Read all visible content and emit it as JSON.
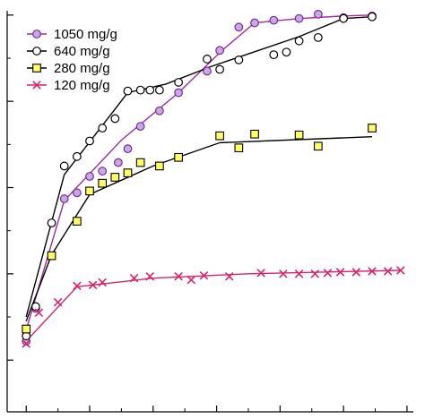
{
  "chart_data": {
    "type": "scatter",
    "title": "",
    "xlabel": "",
    "ylabel": "",
    "xlim": [
      -0.3,
      6.1
    ],
    "ylim": [
      -0.6,
      4.05
    ],
    "legend_position": "top-left",
    "grid": false,
    "series": [
      {
        "name": "1050 mg/g",
        "marker": "circle",
        "marker_fill": "#c9a8e8",
        "marker_edge": "#7a2c8f",
        "line_color": "#9b2d9b",
        "points": [
          [
            0.0,
            0.22
          ],
          [
            0.15,
            0.6
          ],
          [
            0.6,
            1.87
          ],
          [
            0.8,
            1.94
          ],
          [
            1.0,
            2.13
          ],
          [
            1.2,
            2.19
          ],
          [
            1.45,
            2.29
          ],
          [
            1.6,
            2.45
          ],
          [
            1.8,
            2.71
          ],
          [
            2.1,
            2.89
          ],
          [
            2.4,
            3.1
          ],
          [
            2.85,
            3.35
          ],
          [
            3.05,
            3.59
          ],
          [
            3.35,
            3.86
          ],
          [
            3.6,
            3.91
          ],
          [
            3.9,
            3.94
          ],
          [
            4.3,
            3.96
          ],
          [
            4.6,
            4.01
          ],
          [
            5.0,
            3.97
          ],
          [
            5.45,
            3.99
          ]
        ],
        "fit": [
          [
            0.0,
            0.35
          ],
          [
            0.6,
            1.85
          ],
          [
            1.5,
            2.55
          ],
          [
            2.4,
            3.1
          ],
          [
            3.1,
            3.6
          ],
          [
            3.6,
            3.91
          ],
          [
            4.3,
            3.96
          ],
          [
            5.0,
            3.99
          ],
          [
            5.45,
            4.0
          ]
        ]
      },
      {
        "name": "640 mg/g",
        "marker": "circle",
        "marker_fill": "#ffffff",
        "marker_edge": "#000000",
        "line_color": "#000000",
        "points": [
          [
            0.0,
            0.28
          ],
          [
            0.15,
            0.62
          ],
          [
            0.4,
            1.59
          ],
          [
            0.6,
            2.25
          ],
          [
            0.8,
            2.36
          ],
          [
            1.0,
            2.54
          ],
          [
            1.2,
            2.69
          ],
          [
            1.4,
            2.8
          ],
          [
            1.6,
            3.12
          ],
          [
            1.8,
            3.13
          ],
          [
            1.95,
            3.13
          ],
          [
            2.1,
            3.13
          ],
          [
            2.4,
            3.22
          ],
          [
            2.85,
            3.49
          ],
          [
            3.05,
            3.37
          ],
          [
            3.35,
            3.48
          ],
          [
            3.9,
            3.54
          ],
          [
            4.1,
            3.57
          ],
          [
            4.3,
            3.7
          ],
          [
            4.6,
            3.74
          ],
          [
            5.0,
            3.96
          ],
          [
            5.45,
            3.98
          ]
        ],
        "fit": [
          [
            0.0,
            0.5
          ],
          [
            0.6,
            2.15
          ],
          [
            1.6,
            3.1
          ],
          [
            2.2,
            3.2
          ],
          [
            2.9,
            3.4
          ],
          [
            3.5,
            3.55
          ],
          [
            4.3,
            3.75
          ],
          [
            5.0,
            3.96
          ],
          [
            5.45,
            3.98
          ]
        ]
      },
      {
        "name": "280 mg/g",
        "marker": "square",
        "marker_fill": "#ffff66",
        "marker_edge": "#000000",
        "line_color": "#000000",
        "points": [
          [
            0.0,
            0.36
          ],
          [
            0.4,
            1.21
          ],
          [
            0.8,
            1.61
          ],
          [
            1.0,
            1.96
          ],
          [
            1.2,
            2.05
          ],
          [
            1.4,
            2.12
          ],
          [
            1.6,
            2.17
          ],
          [
            1.8,
            2.29
          ],
          [
            2.1,
            2.25
          ],
          [
            2.4,
            2.35
          ],
          [
            3.05,
            2.6
          ],
          [
            3.35,
            2.46
          ],
          [
            3.6,
            2.62
          ],
          [
            4.3,
            2.61
          ],
          [
            4.6,
            2.48
          ],
          [
            5.45,
            2.69
          ]
        ],
        "fit": [
          [
            0.0,
            0.45
          ],
          [
            0.4,
            1.22
          ],
          [
            1.0,
            1.92
          ],
          [
            2.0,
            2.25
          ],
          [
            3.05,
            2.52
          ],
          [
            5.45,
            2.59
          ]
        ]
      },
      {
        "name": "120 mg/g",
        "marker": "cross",
        "marker_fill": "none",
        "marker_edge": "#d6246e",
        "line_color": "#d6246e",
        "points": [
          [
            0.0,
            0.19
          ],
          [
            0.2,
            0.55
          ],
          [
            0.5,
            0.67
          ],
          [
            0.8,
            0.86
          ],
          [
            1.05,
            0.87
          ],
          [
            1.2,
            0.9
          ],
          [
            1.7,
            0.95
          ],
          [
            1.95,
            0.97
          ],
          [
            2.4,
            0.97
          ],
          [
            2.6,
            0.93
          ],
          [
            2.8,
            0.98
          ],
          [
            3.2,
            0.97
          ],
          [
            3.7,
            1.01
          ],
          [
            4.05,
            1.0
          ],
          [
            4.3,
            1.0
          ],
          [
            4.55,
            1.0
          ],
          [
            4.75,
            1.01
          ],
          [
            4.95,
            1.02
          ],
          [
            5.2,
            1.02
          ],
          [
            5.45,
            1.03
          ],
          [
            5.7,
            1.03
          ],
          [
            5.9,
            1.04
          ]
        ],
        "fit": [
          [
            0.0,
            0.22
          ],
          [
            0.8,
            0.85
          ],
          [
            2.0,
            0.95
          ],
          [
            3.5,
            1.0
          ],
          [
            5.9,
            1.04
          ]
        ]
      }
    ],
    "y_ticks": [
      0,
      1,
      2,
      3,
      4
    ],
    "x_ticks": [
      0,
      1,
      2,
      3,
      4,
      5,
      6
    ]
  }
}
